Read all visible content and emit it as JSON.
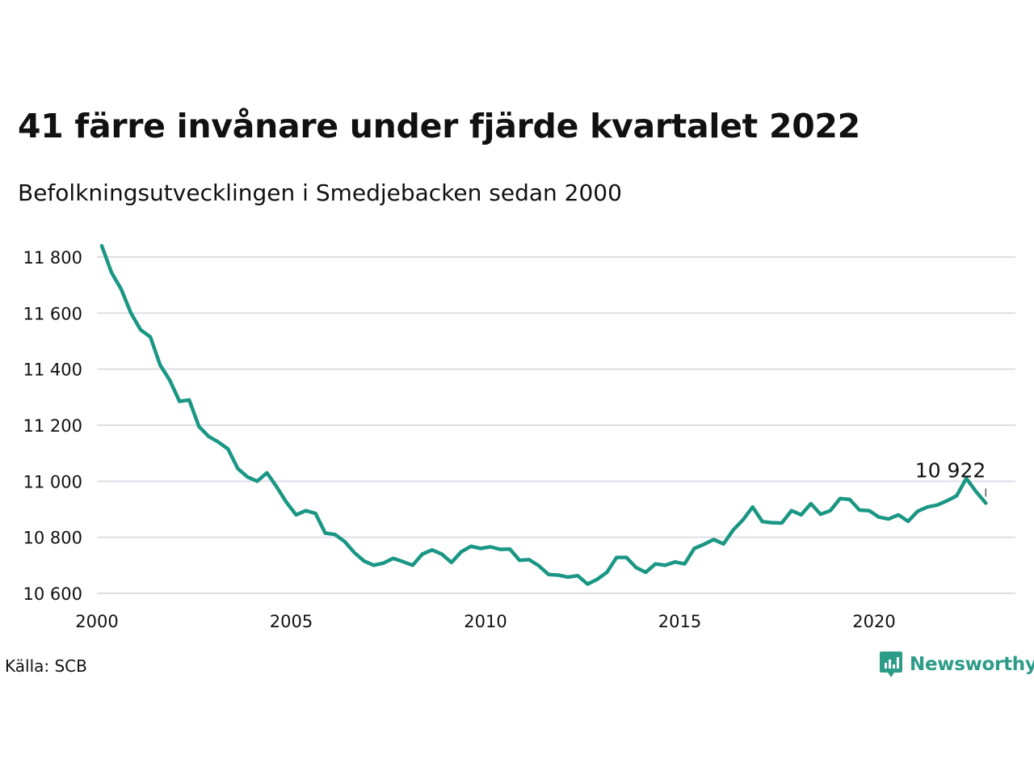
{
  "title": "41 färre invånare under fjärde kvartalet 2022",
  "subtitle": "Befolkningsutvecklingen i Smedjebacken sedan 2000",
  "source": "Källa: SCB",
  "brand": {
    "name": "Newsworthy",
    "color": "#2c9c88"
  },
  "colors": {
    "line": "#1a9784",
    "grid": "#dcdfe6",
    "text": "#111111"
  },
  "chart_data": {
    "type": "line",
    "title": "41 färre invånare under fjärde kvartalet 2022",
    "subtitle": "Befolkningsutvecklingen i Smedjebacken sedan 2000",
    "xlabel": "",
    "ylabel": "",
    "xlim": [
      2000,
      2023.75
    ],
    "ylim": [
      10600,
      11850
    ],
    "x_ticks": [
      2000,
      2005,
      2010,
      2015,
      2020
    ],
    "x_tick_labels": [
      "2000",
      "2005",
      "2010",
      "2015",
      "2020"
    ],
    "y_ticks": [
      10600,
      10800,
      11000,
      11200,
      11400,
      11600,
      11800
    ],
    "y_tick_labels": [
      "10 600",
      "10 800",
      "11 000",
      "11 200",
      "11 400",
      "11 600",
      "11 800"
    ],
    "grid": true,
    "start_year": 2000.125,
    "step": 0.25,
    "series": [
      {
        "values": [
          11840,
          11745,
          11685,
          11600,
          11540,
          11515,
          11415,
          11360,
          11285,
          11290,
          11195,
          11160,
          11140,
          11115,
          11045,
          11015,
          11000,
          11030,
          10980,
          10925,
          10880,
          10895,
          10885,
          10815,
          10810,
          10785,
          10745,
          10715,
          10700,
          10708,
          10725,
          10713,
          10700,
          10740,
          10755,
          10740,
          10710,
          10748,
          10768,
          10760,
          10766,
          10757,
          10758,
          10718,
          10720,
          10698,
          10667,
          10665,
          10658,
          10663,
          10633,
          10650,
          10675,
          10728,
          10728,
          10692,
          10675,
          10705,
          10700,
          10712,
          10705,
          10760,
          10775,
          10792,
          10776,
          10826,
          10862,
          10908,
          10856,
          10852,
          10851,
          10895,
          10880,
          10920,
          10882,
          10895,
          10938,
          10935,
          10897,
          10895,
          10872,
          10865,
          10880,
          10857,
          10893,
          10908,
          10915,
          10930,
          10948,
          11010,
          10963,
          10922
        ]
      }
    ],
    "annotations": [
      {
        "x": 2022.875,
        "y": 10922,
        "text": "10 922"
      }
    ]
  }
}
